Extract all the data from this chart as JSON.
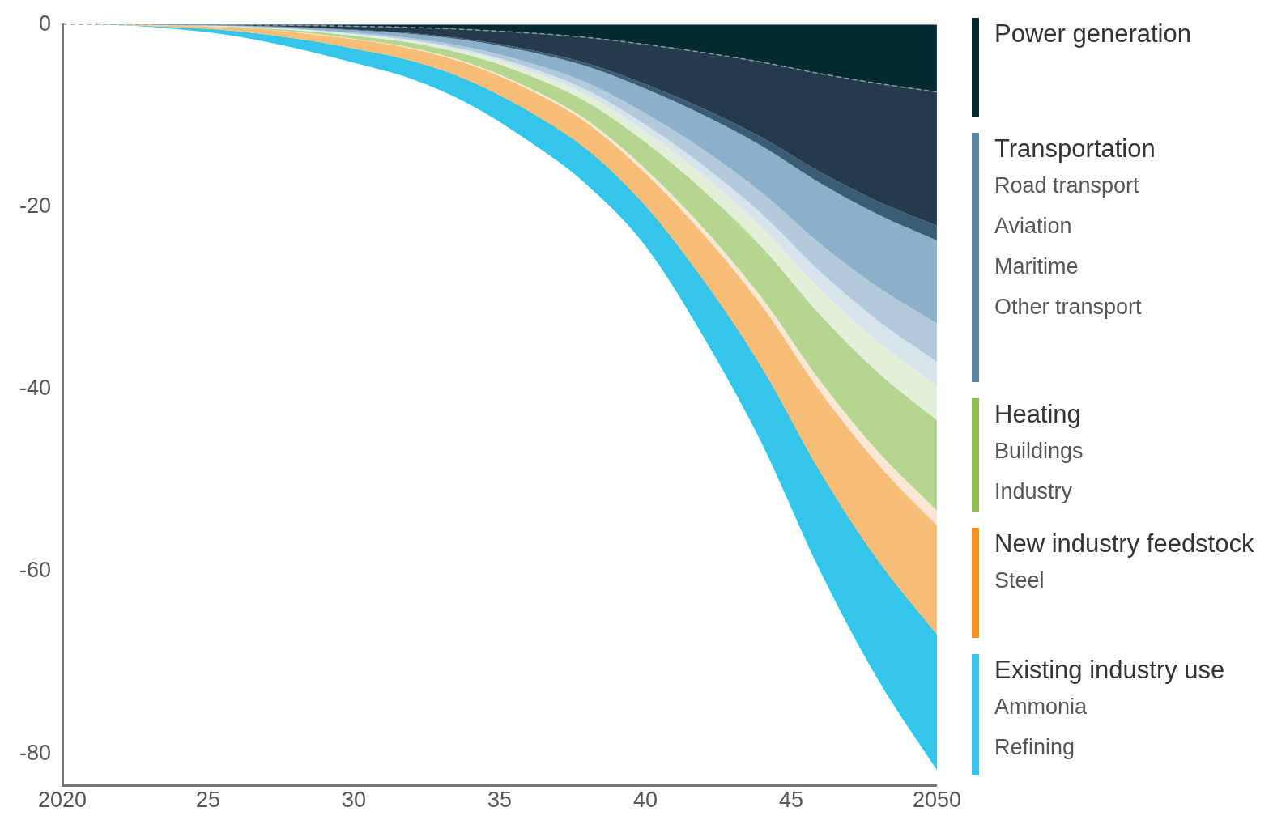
{
  "chart_data": {
    "type": "area",
    "stacked": true,
    "x": [
      2020,
      2022,
      2024,
      2026,
      2028,
      2030,
      2032,
      2034,
      2036,
      2038,
      2040,
      2042,
      2044,
      2046,
      2048,
      2050
    ],
    "series": [
      {
        "color": "#062a33",
        "line_style": "dashed",
        "values": [
          0,
          0,
          -0.02,
          -0.04,
          -0.1,
          -0.2,
          -0.33,
          -0.57,
          -0.93,
          -1.43,
          -2.19,
          -3.09,
          -4.14,
          -5.4,
          -6.48,
          -7.4
        ]
      },
      {
        "color": "#253a4a",
        "values": [
          0,
          -0.01,
          -0.03,
          -0.07,
          -0.18,
          -0.37,
          -0.63,
          -1.09,
          -1.83,
          -2.84,
          -4.37,
          -6.17,
          -8.28,
          -10.8,
          -12.96,
          -14.7
        ]
      },
      {
        "color": "#3a5c74",
        "values": [
          0,
          0,
          -0.01,
          -0.01,
          -0.03,
          -0.05,
          -0.09,
          -0.14,
          -0.22,
          -0.33,
          -0.49,
          -0.69,
          -0.92,
          -1.2,
          -1.44,
          -1.6
        ]
      },
      {
        "color": "#8cb0c9",
        "values": [
          0,
          -0.01,
          -0.03,
          -0.07,
          -0.15,
          -0.28,
          -0.46,
          -0.75,
          -1.2,
          -1.8,
          -2.7,
          -3.81,
          -5.11,
          -6.66,
          -7.99,
          -9.1
        ]
      },
      {
        "color": "#b3cadb",
        "values": [
          0,
          0,
          -0.01,
          -0.03,
          -0.06,
          -0.12,
          -0.2,
          -0.33,
          -0.54,
          -0.82,
          -1.24,
          -1.75,
          -2.35,
          -3.06,
          -3.67,
          -4.2
        ]
      },
      {
        "color": "#d7e4ec",
        "values": [
          0,
          0,
          -0.01,
          -0.02,
          -0.05,
          -0.08,
          -0.13,
          -0.22,
          -0.35,
          -0.52,
          -0.78,
          -1.1,
          -1.47,
          -1.92,
          -2.3,
          -2.6
        ]
      },
      {
        "color": "#e3efd8",
        "values": [
          0,
          0,
          -0.01,
          -0.03,
          -0.06,
          -0.12,
          -0.19,
          -0.31,
          -0.5,
          -0.76,
          -1.14,
          -1.61,
          -2.16,
          -2.82,
          -3.38,
          -3.8
        ]
      },
      {
        "color": "#b5d691",
        "values": [
          0,
          -0.01,
          -0.04,
          -0.09,
          -0.2,
          -0.36,
          -0.55,
          -0.87,
          -1.36,
          -2,
          -2.94,
          -4.15,
          -5.57,
          -7.26,
          -8.71,
          -9.9
        ]
      },
      {
        "color": "#fce7d4",
        "values": [
          0,
          0,
          -0.01,
          -0.01,
          -0.03,
          -0.05,
          -0.08,
          -0.13,
          -0.21,
          -0.31,
          -0.46,
          -0.65,
          -0.87,
          -1.14,
          -1.37,
          -1.6
        ]
      },
      {
        "color": "#f8be78",
        "values": [
          0,
          -0.03,
          -0.14,
          -0.36,
          -0.68,
          -1.02,
          -1.34,
          -1.8,
          -2.37,
          -2.92,
          -3.57,
          -5.04,
          -6.76,
          -8.82,
          -10.58,
          -12
        ]
      },
      {
        "color": "#33c5ea",
        "values": [
          0,
          -0.04,
          -0.22,
          -0.58,
          -1.06,
          -1.55,
          -1.99,
          -2.6,
          -3.29,
          -3.87,
          -4.42,
          -6.24,
          -8.37,
          -10.92,
          -13.1,
          -14.9
        ]
      }
    ],
    "xlim": [
      2020,
      2050
    ],
    "xticks": [
      2020,
      {
        "value": 2025,
        "label": "25"
      },
      {
        "value": 2030,
        "label": "30"
      },
      {
        "value": 2035,
        "label": "35"
      },
      {
        "value": 2040,
        "label": "40"
      },
      {
        "value": 2045,
        "label": "45"
      },
      2050
    ],
    "ylim": [
      -83.5,
      0
    ],
    "yticks": [
      0,
      -20,
      -40,
      -60,
      -80
    ],
    "grid": false,
    "annotations": [
      "Power generation",
      "Transportation",
      "Road transport",
      "Aviation",
      "Maritime",
      "Other transport",
      "Heating",
      "Buildings",
      "Industry",
      "New industry feedstock",
      "Steel",
      "Existing industry use",
      "Ammonia",
      "Refining"
    ]
  }
}
